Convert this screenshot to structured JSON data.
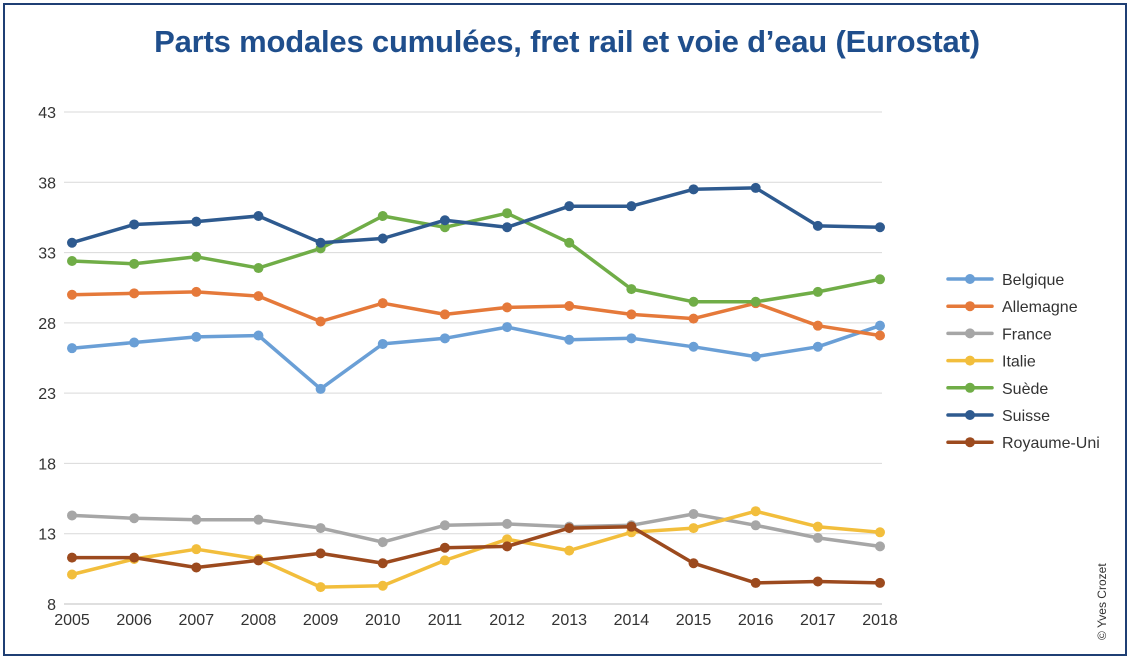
{
  "chart_data": {
    "type": "line",
    "title": "Parts modales cumulées, fret rail et voie d’eau (Eurostat)",
    "xlabel": "",
    "ylabel": "",
    "ylim": [
      8,
      43
    ],
    "yticks": [
      8,
      13,
      18,
      23,
      28,
      33,
      38,
      43
    ],
    "x": [
      2005,
      2006,
      2007,
      2008,
      2009,
      2010,
      2011,
      2012,
      2013,
      2014,
      2015,
      2016,
      2017,
      2018
    ],
    "grid": "horizontal",
    "legend_position": "right",
    "series": [
      {
        "name": "Belgique",
        "color": "#6a9fd6",
        "values": [
          26.2,
          26.6,
          27.0,
          27.1,
          23.3,
          26.5,
          26.9,
          27.7,
          26.8,
          26.9,
          26.3,
          25.6,
          26.3,
          27.8
        ]
      },
      {
        "name": "Allemagne",
        "color": "#e5793a",
        "values": [
          30.0,
          30.1,
          30.2,
          29.9,
          28.1,
          29.4,
          28.6,
          29.1,
          29.2,
          28.6,
          28.3,
          29.4,
          27.8,
          27.1
        ]
      },
      {
        "name": "France",
        "color": "#a6a6a6",
        "values": [
          14.3,
          14.1,
          14.0,
          14.0,
          13.4,
          12.4,
          13.6,
          13.7,
          13.5,
          13.6,
          14.4,
          13.6,
          12.7,
          12.1
        ]
      },
      {
        "name": "Italie",
        "color": "#f2be3c",
        "values": [
          10.1,
          11.2,
          11.9,
          11.2,
          9.2,
          9.3,
          11.1,
          12.6,
          11.8,
          13.1,
          13.4,
          14.6,
          13.5,
          13.1
        ]
      },
      {
        "name": "Suède",
        "color": "#70ad47",
        "values": [
          32.4,
          32.2,
          32.7,
          31.9,
          33.3,
          35.6,
          34.8,
          35.8,
          33.7,
          30.4,
          29.5,
          29.5,
          30.2,
          31.1
        ]
      },
      {
        "name": "Suisse",
        "color": "#2e5a8f",
        "values": [
          33.7,
          35.0,
          35.2,
          35.6,
          33.7,
          34.0,
          35.3,
          34.8,
          36.3,
          36.3,
          37.5,
          37.6,
          34.9,
          34.8
        ]
      },
      {
        "name": "Royaume-Uni",
        "color": "#9c4a1e",
        "values": [
          11.3,
          11.3,
          10.6,
          11.1,
          11.6,
          10.9,
          12.0,
          12.1,
          13.4,
          13.5,
          10.9,
          9.5,
          9.6,
          9.5
        ]
      }
    ]
  },
  "credit": "© Yves Crozet"
}
